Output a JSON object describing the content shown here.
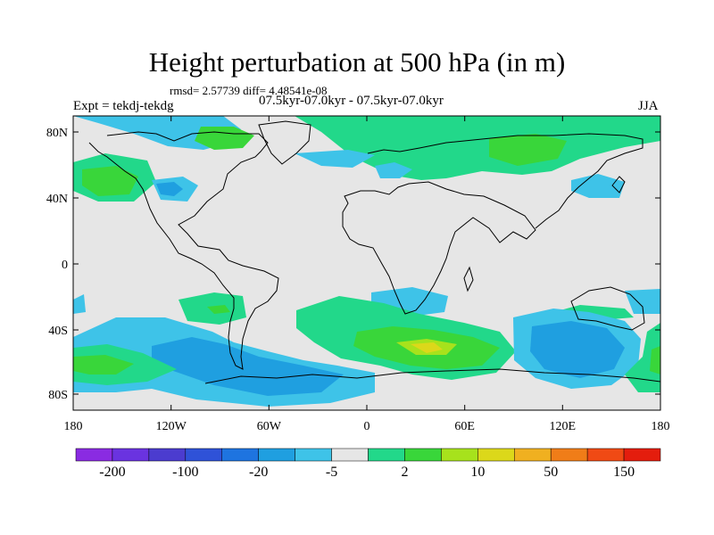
{
  "title": "Height perturbation at 500 hPa (in m)",
  "stats": "rmsd= 2.57739 diff= 4.48541e-08",
  "experiment": "Expt = tekdj-tekdg",
  "subtitle": "07.5kyr-07.0kyr - 07.5kyr-07.0kyr",
  "season": "JJA",
  "lat_ticks": [
    "80N",
    "40N",
    "0",
    "40S",
    "80S"
  ],
  "lon_ticks": [
    "180",
    "120W",
    "60W",
    "0",
    "60E",
    "120E",
    "180"
  ],
  "colorbar": {
    "colors": [
      "#8a2be2",
      "#6a33e0",
      "#4b3ccf",
      "#2f52d8",
      "#1e74e0",
      "#1f9fe0",
      "#3ec3e8",
      "#e6e6e6",
      "#22d88a",
      "#39d63a",
      "#a7e21c",
      "#dcd81a",
      "#f0b020",
      "#f07d18",
      "#f04a14",
      "#e41d0d"
    ],
    "labels": [
      "-200",
      "-100",
      "-20",
      "-5",
      "2",
      "10",
      "50",
      "150"
    ]
  }
}
